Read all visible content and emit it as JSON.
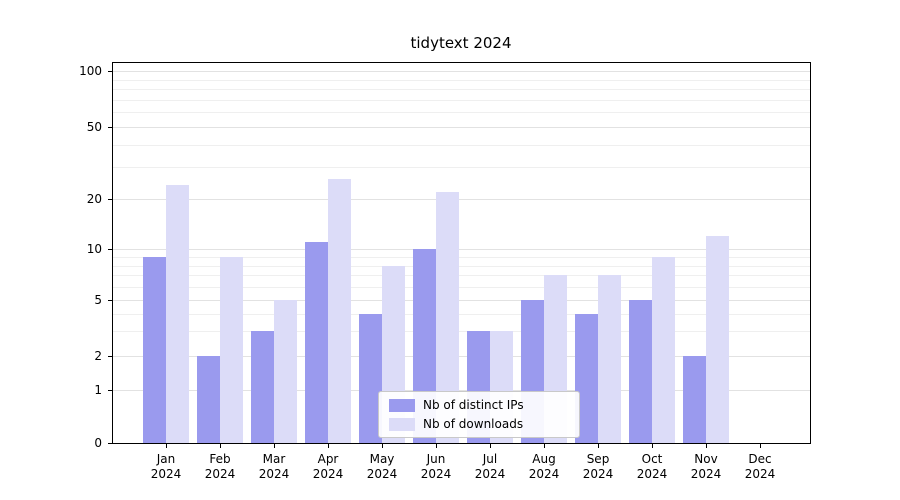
{
  "chart_data": {
    "type": "bar",
    "title": "tidytext 2024",
    "categories": [
      "Jan 2024",
      "Feb 2024",
      "Mar 2024",
      "Apr 2024",
      "May 2024",
      "Jun 2024",
      "Jul 2024",
      "Aug 2024",
      "Sep 2024",
      "Oct 2024",
      "Nov 2024",
      "Dec 2024"
    ],
    "series": [
      {
        "name": "Nb of distinct IPs",
        "color": "#9a9aee",
        "values": [
          9,
          2,
          3,
          11,
          4,
          10,
          3,
          5,
          4,
          5,
          2,
          0
        ]
      },
      {
        "name": "Nb of downloads",
        "color": "#dcdcf8",
        "values": [
          24,
          9,
          5,
          26,
          8,
          22,
          3,
          7,
          7,
          9,
          12,
          0
        ]
      }
    ],
    "y_ticks": [
      0,
      1,
      2,
      5,
      10,
      20,
      50,
      100
    ],
    "y_scale": "symlog",
    "ylim": [
      0,
      100
    ],
    "grid": "horizontal-major-and-minor",
    "legend_position": "lower-center"
  }
}
